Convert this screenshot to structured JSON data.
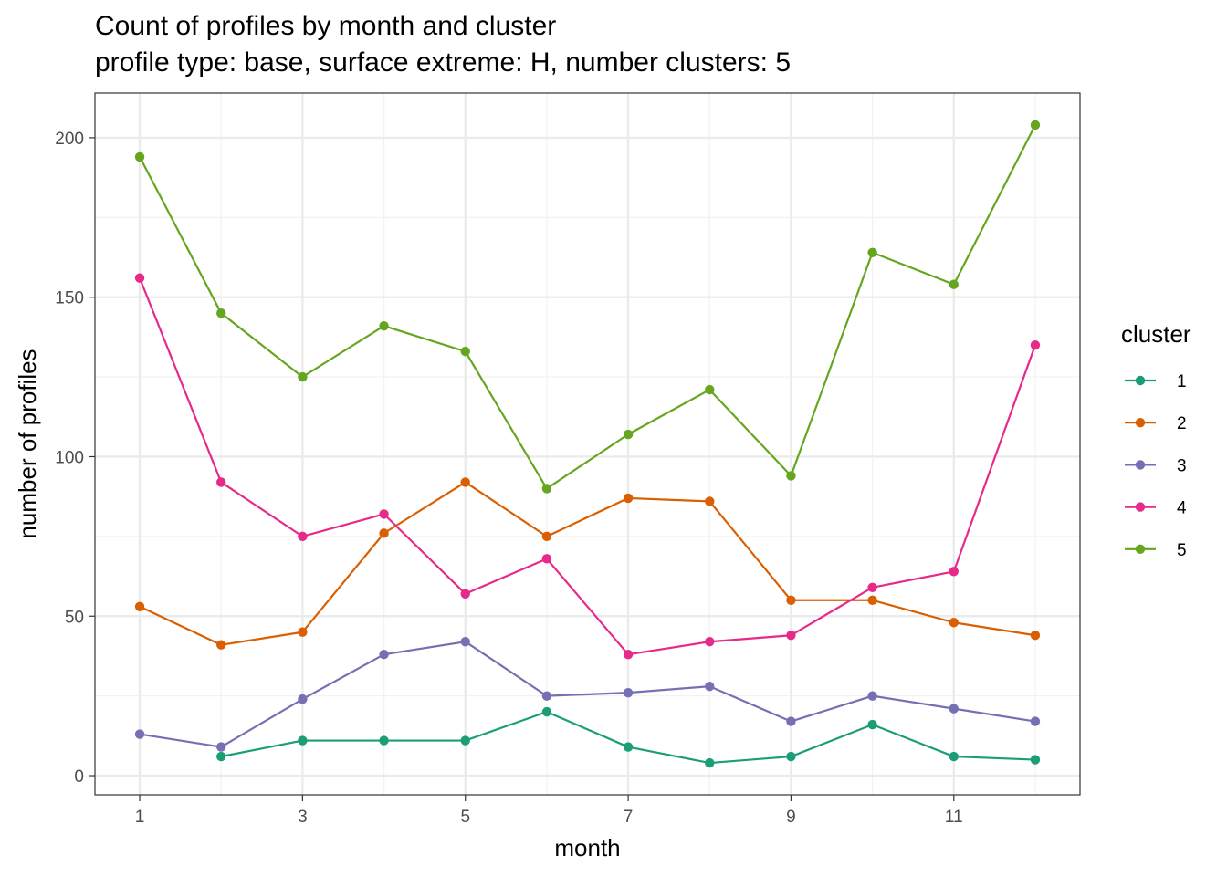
{
  "chart_data": {
    "type": "line",
    "title": "Count of profiles by month and cluster",
    "subtitle": "profile type: base, surface extreme: H, number clusters: 5",
    "xlabel": "month",
    "ylabel": "number of profiles",
    "x_ticks": [
      "1",
      "3",
      "5",
      "7",
      "9",
      "11"
    ],
    "y_ticks": [
      "0",
      "50",
      "100",
      "150",
      "200"
    ],
    "xlim": [
      0.45,
      12.55
    ],
    "ylim": [
      -6,
      214
    ],
    "grid": true,
    "legend_title": "cluster",
    "legend_position": "right",
    "series": [
      {
        "name": "1",
        "color": "#1b9e77",
        "x": [
          2,
          3,
          4,
          5,
          6,
          7,
          8,
          9,
          10,
          11,
          12
        ],
        "values": [
          6,
          11,
          11,
          11,
          20,
          9,
          4,
          6,
          16,
          6,
          5
        ]
      },
      {
        "name": "2",
        "color": "#d95f02",
        "x": [
          1,
          2,
          3,
          4,
          5,
          6,
          7,
          8,
          9,
          10,
          11,
          12
        ],
        "values": [
          53,
          41,
          45,
          76,
          92,
          75,
          87,
          86,
          55,
          55,
          48,
          44
        ]
      },
      {
        "name": "3",
        "color": "#7570b3",
        "x": [
          1,
          2,
          3,
          4,
          5,
          6,
          7,
          8,
          9,
          10,
          11,
          12
        ],
        "values": [
          13,
          9,
          24,
          38,
          42,
          25,
          26,
          28,
          17,
          25,
          21,
          17
        ]
      },
      {
        "name": "4",
        "color": "#e7298a",
        "x": [
          1,
          2,
          3,
          4,
          5,
          6,
          7,
          8,
          9,
          10,
          11,
          12
        ],
        "values": [
          156,
          92,
          75,
          82,
          57,
          68,
          38,
          42,
          44,
          59,
          64,
          135
        ]
      },
      {
        "name": "5",
        "color": "#66a61e",
        "x": [
          1,
          2,
          3,
          4,
          5,
          6,
          7,
          8,
          9,
          10,
          11,
          12
        ],
        "values": [
          194,
          145,
          125,
          141,
          133,
          90,
          107,
          121,
          94,
          164,
          154,
          204
        ]
      }
    ]
  }
}
